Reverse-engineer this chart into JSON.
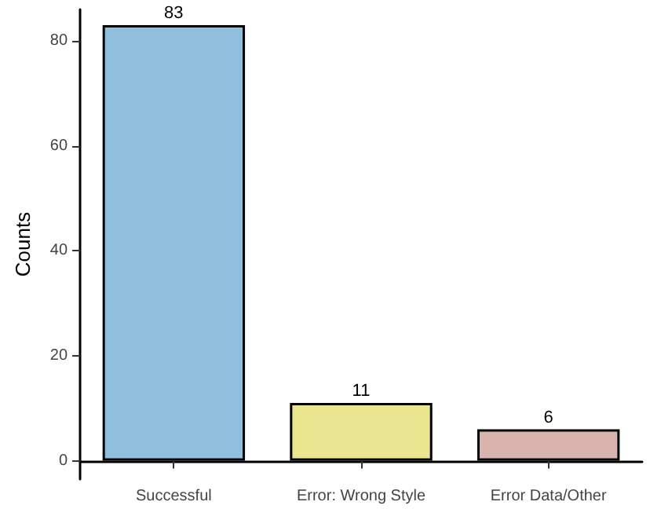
{
  "chart_data": {
    "type": "bar",
    "ylabel": "Counts",
    "categories": [
      "Successful",
      "Error: Wrong Style",
      "Error Data/Other"
    ],
    "values": [
      83,
      11,
      6
    ],
    "colors": [
      "#8fbfdd",
      "#eae68f",
      "#d9b3ae"
    ],
    "ylim": [
      -3.5,
      86
    ],
    "yticks": [
      0,
      20,
      40,
      60,
      80
    ],
    "grid": false,
    "data_labels": true
  }
}
